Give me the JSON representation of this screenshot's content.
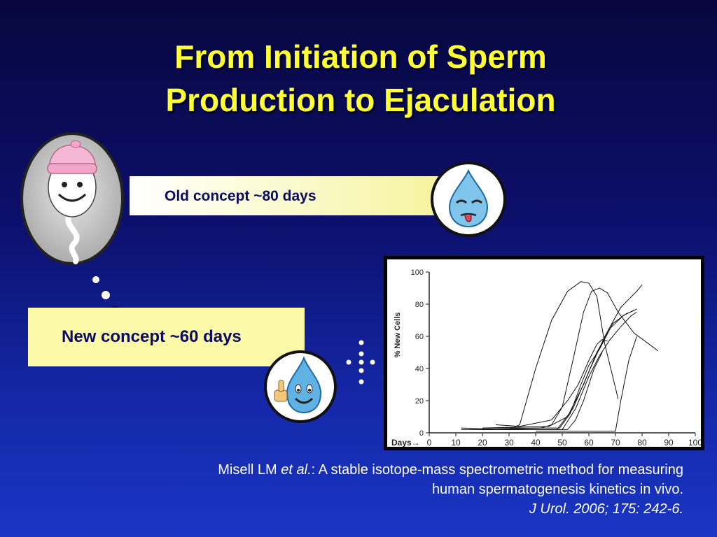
{
  "slide": {
    "title_line1": "From Initiation of Sperm",
    "title_line2": "Production to Ejaculation",
    "old_concept": "Old concept ~80 days",
    "new_concept": "New concept ~60 days",
    "citation": {
      "author": "Misell LM ",
      "etal": "et al.",
      "rest1": ": A stable isotope-mass spectrometric method for measuring",
      "line2": "human spermatogenesis kinetics in vivo.",
      "line3": "J Urol. 2006; 175: 242-6."
    },
    "colors": {
      "title": "#ffff33",
      "background": "#0c0f6a",
      "concept_bar": "#fbf9a8",
      "concept_text": "#0b0b5e"
    },
    "icons": [
      "sperm-cartoon-icon",
      "tired-drop-icon",
      "happy-drop-icon"
    ]
  },
  "chart_data": {
    "type": "line",
    "ylabel": "% New Cells",
    "xlabel": "Days→",
    "xlim": [
      0,
      100
    ],
    "ylim": [
      0,
      100
    ],
    "xticks": [
      0,
      10,
      20,
      30,
      40,
      50,
      60,
      70,
      80,
      90,
      100
    ],
    "yticks": [
      0,
      20,
      40,
      60,
      80,
      100
    ],
    "series": [
      {
        "points": [
          [
            12,
            3
          ],
          [
            30,
            2
          ],
          [
            34,
            5
          ],
          [
            40,
            40
          ],
          [
            46,
            70
          ],
          [
            52,
            88
          ],
          [
            57,
            94
          ],
          [
            60,
            93
          ],
          [
            63,
            85
          ],
          [
            66,
            55
          ],
          [
            70,
            28
          ],
          [
            71,
            21
          ]
        ]
      },
      {
        "points": [
          [
            20,
            2
          ],
          [
            42,
            3
          ],
          [
            46,
            5
          ],
          [
            50,
            16
          ],
          [
            54,
            45
          ],
          [
            58,
            75
          ],
          [
            61,
            88
          ],
          [
            64,
            90
          ],
          [
            67,
            87
          ],
          [
            71,
            75
          ],
          [
            77,
            62
          ],
          [
            86,
            51
          ]
        ]
      },
      {
        "points": [
          [
            25,
            5
          ],
          [
            34,
            4
          ],
          [
            40,
            6
          ],
          [
            46,
            8
          ],
          [
            52,
            20
          ],
          [
            56,
            30
          ],
          [
            60,
            45
          ],
          [
            63,
            55
          ],
          [
            65,
            58
          ],
          [
            67,
            57
          ]
        ]
      },
      {
        "points": [
          [
            20,
            3
          ],
          [
            45,
            4
          ],
          [
            52,
            10
          ],
          [
            58,
            30
          ],
          [
            63,
            50
          ],
          [
            68,
            65
          ],
          [
            73,
            73
          ],
          [
            78,
            77
          ]
        ]
      },
      {
        "points": [
          [
            15,
            2
          ],
          [
            48,
            2
          ],
          [
            54,
            15
          ],
          [
            60,
            38
          ],
          [
            66,
            60
          ],
          [
            72,
            78
          ],
          [
            78,
            88
          ],
          [
            80,
            92
          ]
        ]
      },
      {
        "points": [
          [
            12,
            2
          ],
          [
            50,
            2
          ],
          [
            55,
            15
          ],
          [
            60,
            35
          ],
          [
            64,
            48
          ],
          [
            68,
            58
          ],
          [
            72,
            66
          ],
          [
            76,
            73
          ],
          [
            78,
            75
          ]
        ]
      },
      {
        "points": [
          [
            22,
            3
          ],
          [
            49,
            3
          ],
          [
            53,
            12
          ],
          [
            57,
            30
          ],
          [
            60,
            42
          ],
          [
            64,
            52
          ],
          [
            69,
            68
          ],
          [
            74,
            74
          ],
          [
            77,
            76
          ]
        ]
      },
      {
        "points": [
          [
            30,
            2
          ],
          [
            52,
            2
          ],
          [
            55,
            8
          ],
          [
            58,
            20
          ],
          [
            62,
            40
          ],
          [
            65,
            50
          ]
        ]
      },
      {
        "points": [
          [
            40,
            1
          ],
          [
            70,
            1
          ],
          [
            72,
            20
          ],
          [
            75,
            45
          ],
          [
            78,
            60
          ]
        ]
      }
    ]
  }
}
